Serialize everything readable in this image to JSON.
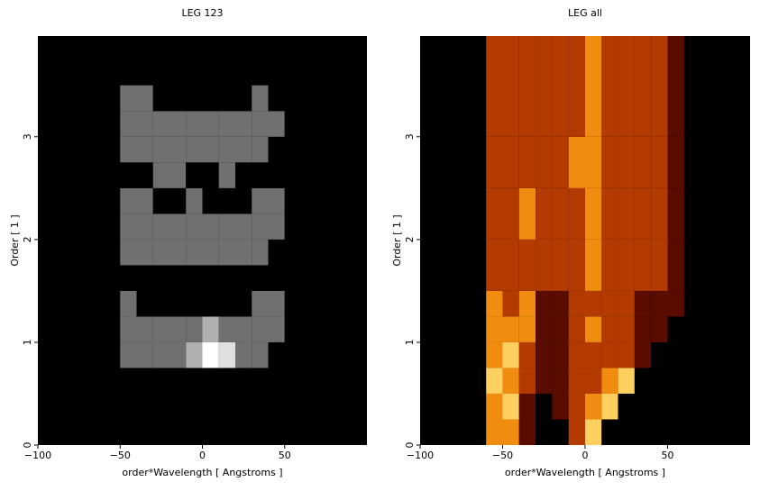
{
  "chart_data": [
    {
      "type": "heatmap",
      "title": "LEG 123",
      "xlabel": "order*Wavelength [ Angstroms ]",
      "ylabel": "Order [ 1 ]",
      "xlim": [
        -100,
        100
      ],
      "ylim": [
        0,
        3.98
      ],
      "xticks": [
        {
          "value": -100,
          "label": "−100"
        },
        {
          "value": -50,
          "label": "−50"
        },
        0,
        50
      ],
      "yticks": [
        0,
        1,
        2,
        3
      ],
      "colors": [
        "#000000",
        "#707070",
        "#b0b0b0",
        "#e0e0e0",
        "#ffffff"
      ],
      "xbins": [
        -60,
        -50,
        -40,
        -30,
        -20,
        -10,
        0,
        10,
        20,
        30,
        40,
        50,
        60
      ],
      "ybins": [
        0,
        0.25,
        0.5,
        0.75,
        1.0,
        1.25,
        1.5,
        1.75,
        2.0,
        2.25,
        2.5,
        2.75,
        3.0,
        3.25,
        3.5
      ],
      "values": [
        [
          0,
          0,
          0,
          0,
          0,
          0,
          0,
          0,
          0,
          0,
          0,
          0
        ],
        [
          0,
          0,
          0,
          0,
          0,
          0,
          0,
          0,
          0,
          0,
          0,
          0
        ],
        [
          0,
          0,
          0,
          0,
          0,
          0,
          0,
          0,
          0,
          0,
          0,
          0
        ],
        [
          0,
          1,
          1,
          1,
          1,
          2,
          4,
          3,
          1,
          1,
          0,
          0
        ],
        [
          0,
          1,
          1,
          1,
          1,
          1,
          2,
          1,
          1,
          1,
          1,
          0
        ],
        [
          0,
          1,
          0,
          0,
          0,
          0,
          0,
          0,
          0,
          1,
          1,
          0
        ],
        [
          0,
          0,
          0,
          0,
          0,
          0,
          0,
          0,
          0,
          0,
          0,
          0
        ],
        [
          0,
          1,
          1,
          1,
          1,
          1,
          1,
          1,
          1,
          1,
          0,
          0
        ],
        [
          0,
          1,
          1,
          1,
          1,
          1,
          1,
          1,
          1,
          1,
          1,
          0
        ],
        [
          0,
          1,
          1,
          0,
          0,
          1,
          0,
          0,
          0,
          1,
          1,
          0
        ],
        [
          0,
          0,
          0,
          1,
          1,
          0,
          0,
          1,
          0,
          0,
          0,
          0
        ],
        [
          0,
          1,
          1,
          1,
          1,
          1,
          1,
          1,
          1,
          1,
          0,
          0
        ],
        [
          0,
          1,
          1,
          1,
          1,
          1,
          1,
          1,
          1,
          1,
          1,
          0
        ],
        [
          0,
          1,
          1,
          0,
          0,
          0,
          0,
          0,
          0,
          1,
          0,
          0
        ]
      ]
    },
    {
      "type": "heatmap",
      "title": "LEG all",
      "xlabel": "order*Wavelength [ Angstroms ]",
      "ylabel": "Order [ 1 ]",
      "xlim": [
        -100,
        100
      ],
      "ylim": [
        0,
        3.98
      ],
      "xticks": [
        {
          "value": -100,
          "label": "−100"
        },
        {
          "value": -50,
          "label": "−50"
        },
        0,
        50
      ],
      "yticks": [
        0,
        1,
        2,
        3
      ],
      "colors": [
        "#000000",
        "#5a0c00",
        "#b33a00",
        "#f08c10",
        "#ffd060",
        "#ffffff"
      ],
      "xbins": [
        -60,
        -50,
        -40,
        -30,
        -20,
        -10,
        0,
        10,
        20,
        30,
        40,
        50,
        60
      ],
      "ybins": [
        0,
        0.25,
        0.5,
        0.75,
        1.0,
        1.25,
        1.5,
        2.0,
        2.5,
        3.0,
        3.98
      ],
      "values": [
        [
          3,
          3,
          1,
          0,
          0,
          2,
          4,
          0,
          0,
          0,
          0,
          0
        ],
        [
          3,
          4,
          1,
          0,
          1,
          2,
          3,
          4,
          0,
          0,
          0,
          0
        ],
        [
          4,
          3,
          2,
          1,
          1,
          2,
          2,
          3,
          4,
          0,
          0,
          0
        ],
        [
          3,
          4,
          2,
          1,
          1,
          2,
          2,
          2,
          2,
          1,
          0,
          0
        ],
        [
          3,
          3,
          3,
          1,
          1,
          2,
          3,
          2,
          2,
          1,
          1,
          0
        ],
        [
          3,
          2,
          3,
          1,
          1,
          2,
          2,
          2,
          2,
          1,
          1,
          1
        ],
        [
          2,
          2,
          2,
          2,
          2,
          2,
          3,
          2,
          2,
          2,
          2,
          1
        ],
        [
          2,
          2,
          3,
          2,
          2,
          2,
          3,
          2,
          2,
          2,
          2,
          1
        ],
        [
          2,
          2,
          2,
          2,
          2,
          3,
          3,
          2,
          2,
          2,
          2,
          1
        ],
        [
          2,
          2,
          2,
          2,
          2,
          2,
          3,
          2,
          2,
          2,
          2,
          1
        ]
      ]
    }
  ]
}
